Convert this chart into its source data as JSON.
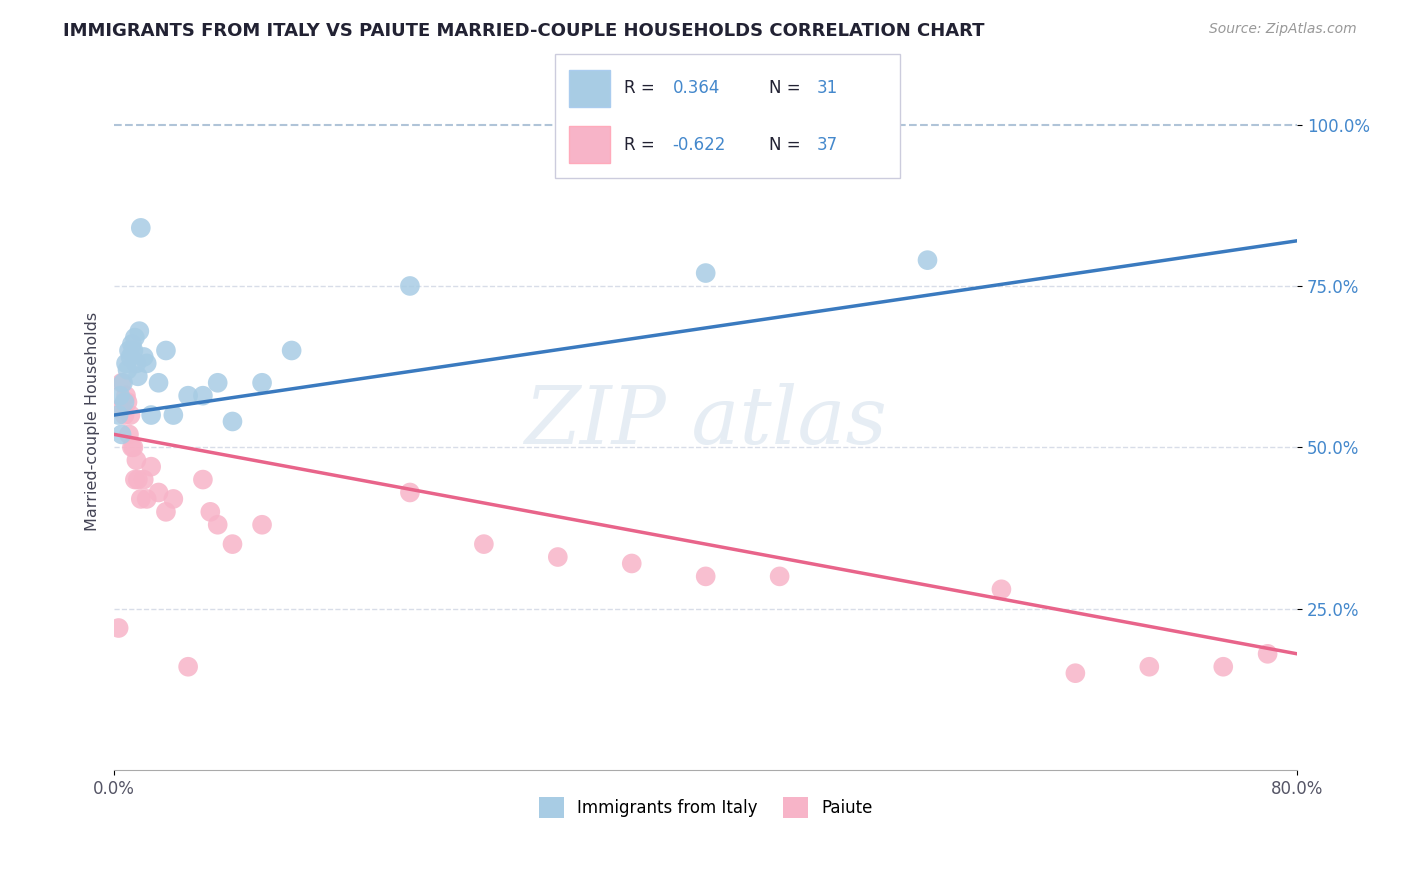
{
  "title": "IMMIGRANTS FROM ITALY VS PAIUTE MARRIED-COUPLE HOUSEHOLDS CORRELATION CHART",
  "source": "Source: ZipAtlas.com",
  "ylabel": "Married-couple Households",
  "legend_label1": "Immigrants from Italy",
  "legend_label2": "Paiute",
  "r1": "0.364",
  "n1": "31",
  "r2": "-0.622",
  "n2": "37",
  "xlim": [
    0.0,
    80.0
  ],
  "ylim": [
    0.0,
    100.0
  ],
  "color_blue": "#a8cce4",
  "color_blue_line": "#3a7abf",
  "color_blue_dark": "#2171b5",
  "color_pink": "#f7b4c8",
  "color_pink_line": "#e8648a",
  "color_dashed": "#b0c4d8",
  "color_grid": "#d8dde8",
  "color_text_dark": "#333344",
  "color_tick": "#4488cc",
  "blue_scatter_x": [
    0.3,
    0.4,
    0.5,
    0.6,
    0.7,
    0.8,
    0.9,
    1.0,
    1.1,
    1.2,
    1.3,
    1.4,
    1.5,
    1.6,
    1.7,
    1.8,
    2.0,
    2.2,
    2.5,
    3.0,
    3.5,
    4.0,
    5.0,
    6.0,
    7.0,
    8.0,
    10.0,
    12.0,
    20.0,
    40.0,
    55.0
  ],
  "blue_scatter_y": [
    55,
    58,
    52,
    60,
    57,
    63,
    62,
    65,
    64,
    66,
    65,
    67,
    63,
    61,
    68,
    84,
    64,
    63,
    55,
    60,
    65,
    55,
    58,
    58,
    60,
    54,
    60,
    65,
    75,
    77,
    79
  ],
  "pink_scatter_x": [
    0.3,
    0.4,
    0.5,
    0.7,
    0.8,
    0.9,
    1.0,
    1.1,
    1.2,
    1.3,
    1.4,
    1.5,
    1.6,
    1.8,
    2.0,
    2.2,
    2.5,
    3.0,
    3.5,
    4.0,
    5.0,
    6.0,
    6.5,
    7.0,
    8.0,
    10.0,
    20.0,
    25.0,
    30.0,
    35.0,
    40.0,
    45.0,
    60.0,
    65.0,
    70.0,
    75.0,
    78.0
  ],
  "pink_scatter_y": [
    22,
    56,
    60,
    55,
    58,
    57,
    52,
    55,
    50,
    50,
    45,
    48,
    45,
    42,
    45,
    42,
    47,
    43,
    40,
    42,
    16,
    45,
    40,
    38,
    35,
    38,
    43,
    35,
    33,
    32,
    30,
    30,
    28,
    15,
    16,
    16,
    18
  ],
  "blue_line_x0": 0.0,
  "blue_line_x1": 80.0,
  "blue_line_y0": 55.0,
  "blue_line_y1": 82.0,
  "pink_line_x0": 0.0,
  "pink_line_x1": 80.0,
  "pink_line_y0": 52.0,
  "pink_line_y1": 18.0,
  "dashed_line_y": 100.0
}
